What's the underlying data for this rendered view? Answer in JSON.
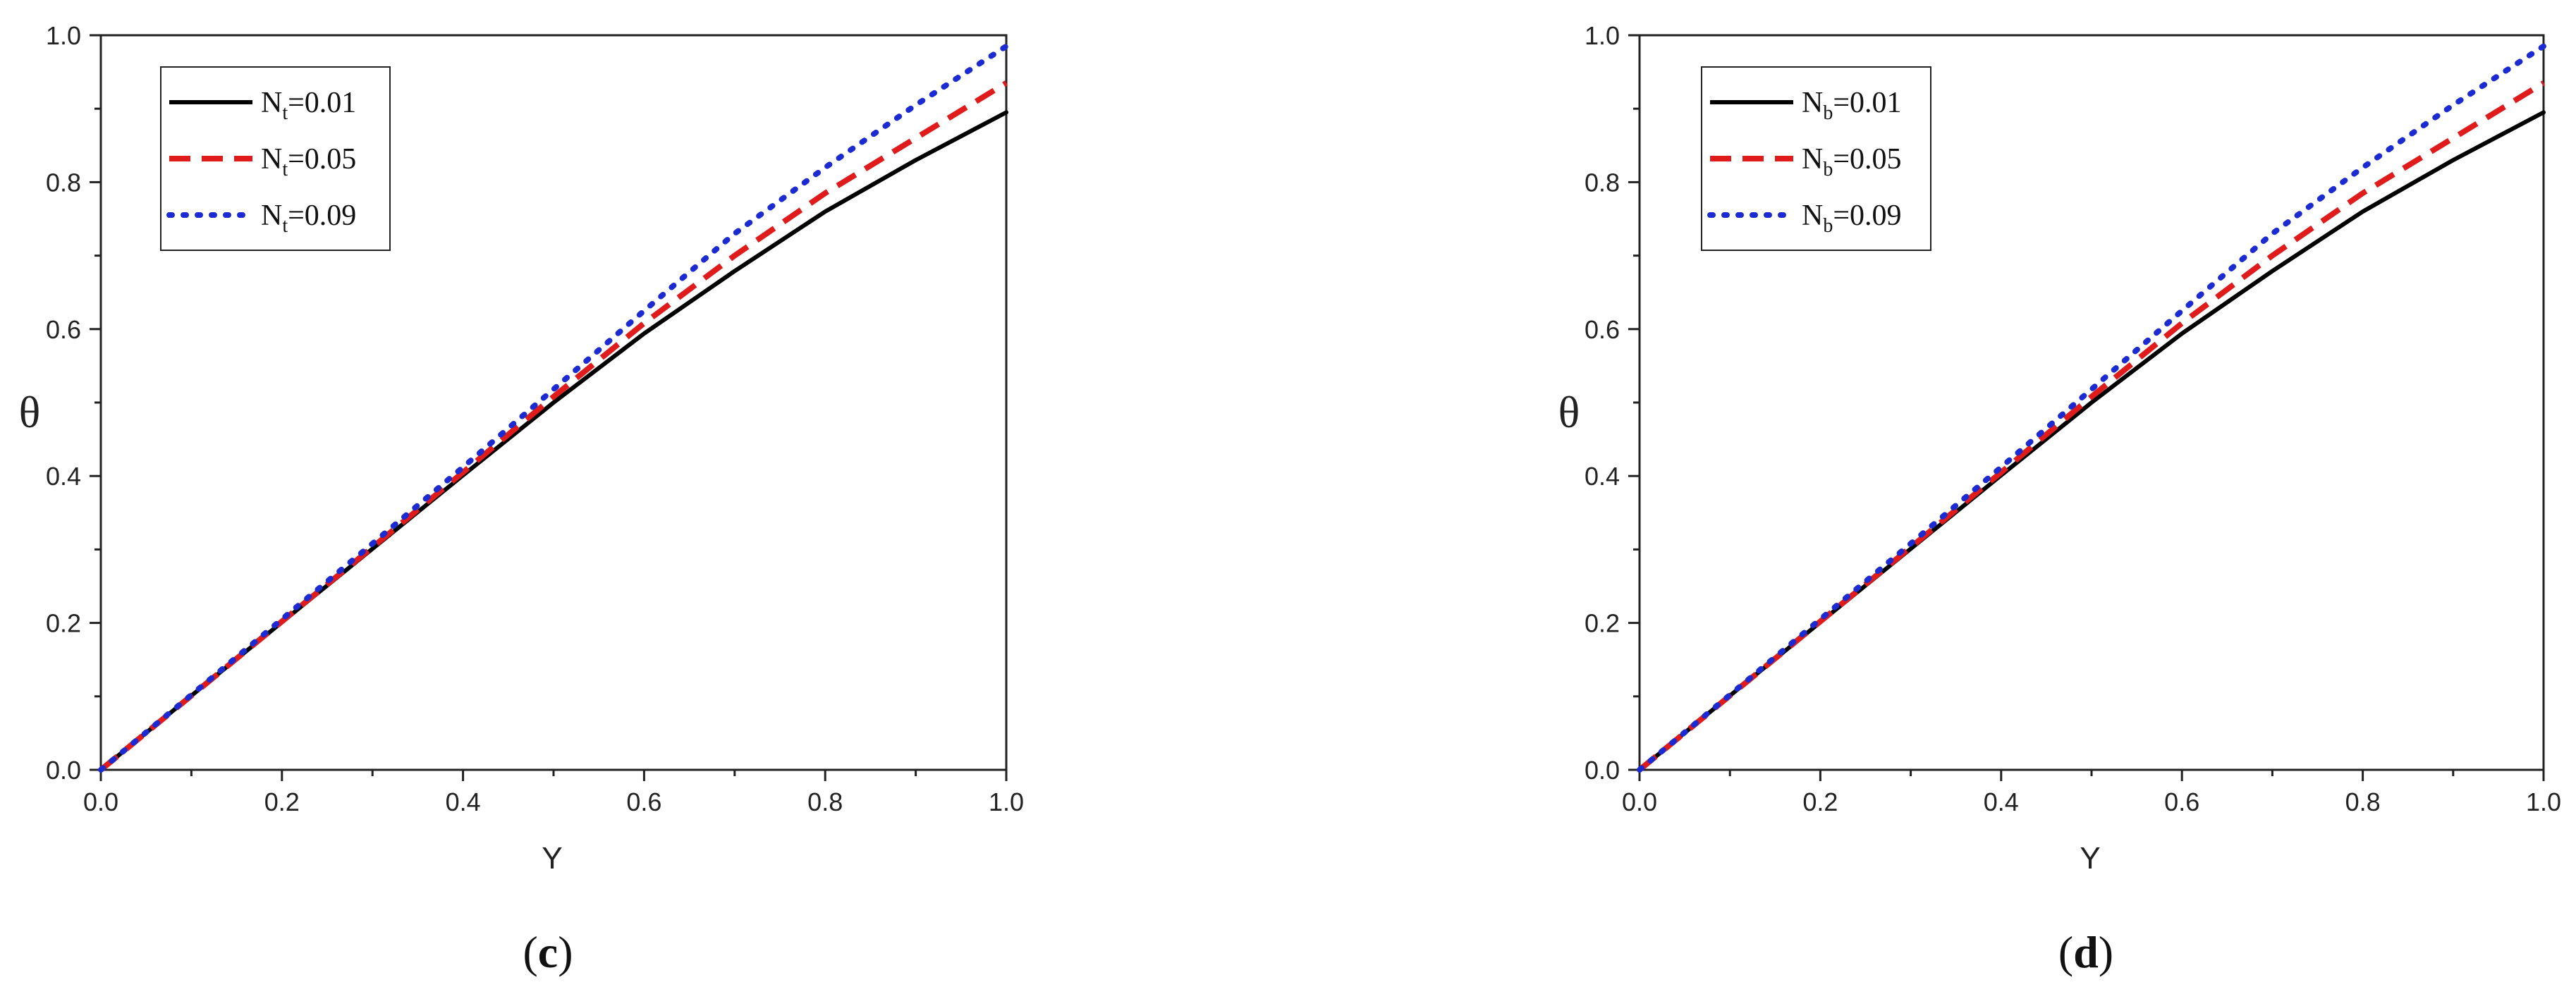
{
  "chart_data": [
    {
      "type": "line",
      "panel_label": "c",
      "xlabel": "Y",
      "ylabel": "θ",
      "xlim": [
        0.0,
        1.0
      ],
      "ylim": [
        0.0,
        1.0
      ],
      "x_ticks": [
        "0.0",
        "0.2",
        "0.4",
        "0.6",
        "0.8",
        "1.0"
      ],
      "y_ticks": [
        "0.0",
        "0.2",
        "0.4",
        "0.6",
        "0.8",
        "1.0"
      ],
      "grid": false,
      "legend_position": "top-left",
      "x": [
        0.0,
        0.1,
        0.2,
        0.3,
        0.4,
        0.5,
        0.6,
        0.7,
        0.8,
        0.9,
        1.0
      ],
      "series": [
        {
          "name_main": "N",
          "name_sub": "t",
          "name_rest": "=0.01",
          "color": "#000000",
          "dash": "solid",
          "values": [
            0.0,
            0.101,
            0.201,
            0.301,
            0.401,
            0.5,
            0.594,
            0.679,
            0.76,
            0.83,
            0.895
          ]
        },
        {
          "name_main": "N",
          "name_sub": "t",
          "name_rest": "=0.05",
          "color": "#e01b1b",
          "dash": "dashed",
          "values": [
            0.0,
            0.101,
            0.202,
            0.303,
            0.405,
            0.508,
            0.608,
            0.7,
            0.785,
            0.86,
            0.935
          ]
        },
        {
          "name_main": "N",
          "name_sub": "t",
          "name_rest": "=0.09",
          "color": "#1c2bd1",
          "dash": "dotted",
          "values": [
            0.0,
            0.102,
            0.205,
            0.308,
            0.412,
            0.518,
            0.625,
            0.73,
            0.82,
            0.905,
            0.985
          ]
        }
      ]
    },
    {
      "type": "line",
      "panel_label": "d",
      "xlabel": "Y",
      "ylabel": "θ",
      "xlim": [
        0.0,
        1.0
      ],
      "ylim": [
        0.0,
        1.0
      ],
      "x_ticks": [
        "0.0",
        "0.2",
        "0.4",
        "0.6",
        "0.8",
        "1.0"
      ],
      "y_ticks": [
        "0.0",
        "0.2",
        "0.4",
        "0.6",
        "0.8",
        "1.0"
      ],
      "grid": false,
      "legend_position": "top-left",
      "x": [
        0.0,
        0.1,
        0.2,
        0.3,
        0.4,
        0.5,
        0.6,
        0.7,
        0.8,
        0.9,
        1.0
      ],
      "series": [
        {
          "name_main": "N",
          "name_sub": "b",
          "name_rest": "=0.01",
          "color": "#000000",
          "dash": "solid",
          "values": [
            0.0,
            0.101,
            0.201,
            0.301,
            0.401,
            0.5,
            0.594,
            0.679,
            0.76,
            0.83,
            0.895
          ]
        },
        {
          "name_main": "N",
          "name_sub": "b",
          "name_rest": "=0.05",
          "color": "#e01b1b",
          "dash": "dashed",
          "values": [
            0.0,
            0.101,
            0.202,
            0.303,
            0.405,
            0.508,
            0.608,
            0.7,
            0.785,
            0.86,
            0.935
          ]
        },
        {
          "name_main": "N",
          "name_sub": "b",
          "name_rest": "=0.09",
          "color": "#1c2bd1",
          "dash": "dotted",
          "values": [
            0.0,
            0.102,
            0.205,
            0.308,
            0.412,
            0.518,
            0.625,
            0.73,
            0.82,
            0.905,
            0.985
          ]
        }
      ]
    }
  ]
}
